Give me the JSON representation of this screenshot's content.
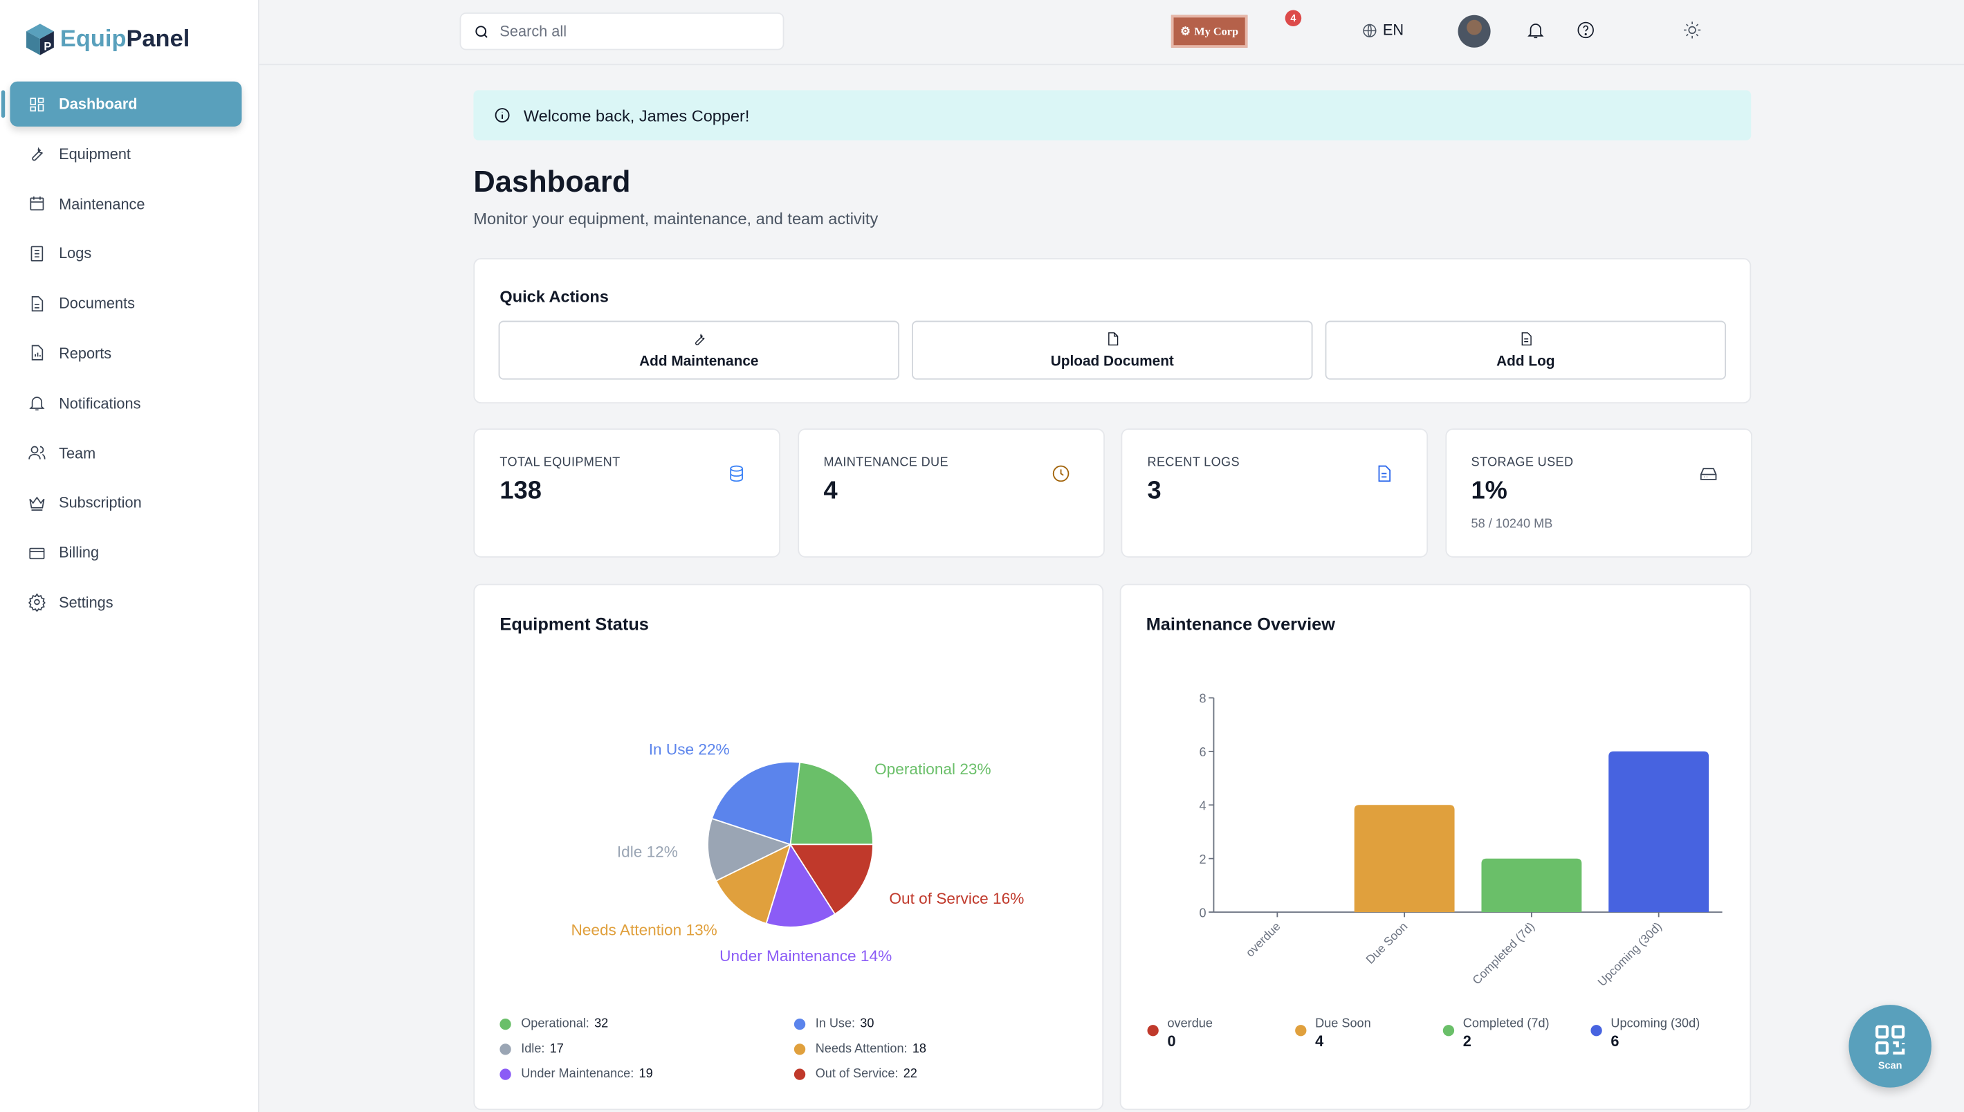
{
  "app": {
    "name_part1": "Equip",
    "name_part2": "Panel"
  },
  "sidebar": {
    "items": [
      {
        "label": "Dashboard",
        "icon": "dashboard-icon",
        "active": true
      },
      {
        "label": "Equipment",
        "icon": "wrench-icon"
      },
      {
        "label": "Maintenance",
        "icon": "calendar-icon"
      },
      {
        "label": "Logs",
        "icon": "logs-icon"
      },
      {
        "label": "Documents",
        "icon": "document-icon"
      },
      {
        "label": "Reports",
        "icon": "report-icon"
      },
      {
        "label": "Notifications",
        "icon": "bell-icon"
      },
      {
        "label": "Team",
        "icon": "users-icon"
      },
      {
        "label": "Subscription",
        "icon": "crown-icon"
      },
      {
        "label": "Billing",
        "icon": "credit-card-icon"
      },
      {
        "label": "Settings",
        "icon": "gear-icon"
      }
    ]
  },
  "topbar": {
    "search_placeholder": "Search all",
    "company": "My Corp",
    "notification_count": "4",
    "language": "EN"
  },
  "welcome": "Welcome back, James Copper!",
  "page": {
    "title": "Dashboard",
    "subtitle": "Monitor your equipment, maintenance, and team activity"
  },
  "quick_actions": {
    "title": "Quick Actions",
    "buttons": [
      {
        "label": "Add Maintenance"
      },
      {
        "label": "Upload Document"
      },
      {
        "label": "Add Log"
      }
    ]
  },
  "stats": [
    {
      "label": "TOTAL EQUIPMENT",
      "value": "138",
      "color": "#3b82f6"
    },
    {
      "label": "MAINTENANCE DUE",
      "value": "4",
      "color": "#a16207"
    },
    {
      "label": "RECENT LOGS",
      "value": "3",
      "color": "#2563eb"
    },
    {
      "label": "STORAGE USED",
      "value": "1%",
      "sub": "58 / 10240 MB",
      "color": "#374151"
    }
  ],
  "fab": {
    "label": "Scan"
  },
  "chart_data": [
    {
      "type": "pie",
      "title": "Equipment Status",
      "slices": [
        {
          "name": "Operational",
          "value": 32,
          "pct": "Operational 23%",
          "color": "#6abf69"
        },
        {
          "name": "Out of Service",
          "value": 22,
          "pct": "Out of Service 16%",
          "color": "#c0392b"
        },
        {
          "name": "Under Maintenance",
          "value": 19,
          "pct": "Under Maintenance 14%",
          "color": "#8b5cf6"
        },
        {
          "name": "Needs Attention",
          "value": 18,
          "pct": "Needs Attention 13%",
          "color": "#e0a03d"
        },
        {
          "name": "Idle",
          "value": 17,
          "pct": "Idle 12%",
          "color": "#9aa5b4"
        },
        {
          "name": "In Use",
          "value": 30,
          "pct": "In Use 22%",
          "color": "#5b84ec"
        }
      ],
      "legend": [
        {
          "label": "Operational:",
          "value": "32",
          "color": "#6abf69"
        },
        {
          "label": "In Use:",
          "value": "30",
          "color": "#5b84ec"
        },
        {
          "label": "Idle:",
          "value": "17",
          "color": "#9aa5b4"
        },
        {
          "label": "Needs Attention:",
          "value": "18",
          "color": "#e0a03d"
        },
        {
          "label": "Under Maintenance:",
          "value": "19",
          "color": "#8b5cf6"
        },
        {
          "label": "Out of Service:",
          "value": "22",
          "color": "#c0392b"
        }
      ]
    },
    {
      "type": "bar",
      "title": "Maintenance Overview",
      "categories": [
        "overdue",
        "Due Soon",
        "Completed (7d)",
        "Upcoming (30d)"
      ],
      "values": [
        0,
        4,
        2,
        6
      ],
      "colors": [
        "#c0392b",
        "#e0a03d",
        "#6abf69",
        "#4763e0"
      ],
      "ylim": [
        0,
        8
      ],
      "yticks": [
        "0",
        "2",
        "4",
        "6",
        "8"
      ],
      "legend": [
        {
          "label": "overdue",
          "value": "0"
        },
        {
          "label": "Due Soon",
          "value": "4"
        },
        {
          "label": "Completed (7d)",
          "value": "2"
        },
        {
          "label": "Upcoming (30d)",
          "value": "6"
        }
      ]
    }
  ]
}
